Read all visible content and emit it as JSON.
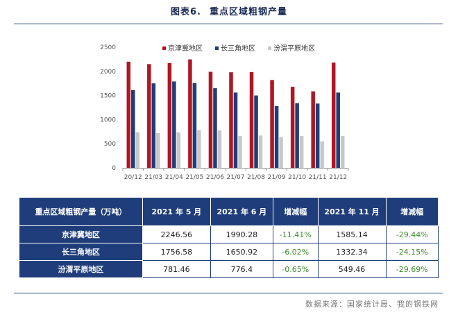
{
  "title": {
    "number": "图表6.",
    "text": "重点区域粗钢产量"
  },
  "colors": {
    "jjj": "#b01623",
    "csj": "#1f3d7a",
    "fw": "#c8c8c8",
    "negative": "#3f8a2f",
    "header": "#1f3d7a"
  },
  "chart_data": {
    "type": "bar",
    "categories": [
      "20/12",
      "21/03",
      "21/04",
      "21/05",
      "21/06",
      "21/07",
      "21/08",
      "21/09",
      "21/10",
      "21/11",
      "21/12"
    ],
    "series": [
      {
        "name": "京津冀地区",
        "color": "#b01623",
        "values": [
          2200,
          2150,
          2170,
          2246.56,
          1990.28,
          1980,
          1985,
          1820,
          1680,
          1585.14,
          2180
        ]
      },
      {
        "name": "长三角地区",
        "color": "#1f3d7a",
        "values": [
          1610,
          1750,
          1790,
          1756.58,
          1650.92,
          1560,
          1500,
          1280,
          1340,
          1332.34,
          1560
        ]
      },
      {
        "name": "汾渭平原地区",
        "color": "#c8c8c8",
        "values": [
          740,
          720,
          735,
          781.46,
          776.4,
          660,
          670,
          640,
          660,
          549.46,
          660
        ]
      }
    ],
    "ylim": [
      0,
      2500
    ],
    "yticks": [
      0,
      500,
      1000,
      1500,
      2000,
      2500
    ],
    "grid": false,
    "legend": "top"
  },
  "table": {
    "headers": [
      "重点区域粗钢产量（万吨）",
      "2021 年 5 月",
      "2021 年 6 月",
      "增减幅",
      "2021 年 11 月",
      "增减幅"
    ],
    "rows": [
      {
        "region": "京津冀地区",
        "may": "2246.56",
        "jun": "1990.28",
        "chg1": "-11.41%",
        "nov": "1585.14",
        "chg2": "-29.44%"
      },
      {
        "region": "长三角地区",
        "may": "1756.58",
        "jun": "1650.92",
        "chg1": "-6.02%",
        "nov": "1332.34",
        "chg2": "-24.15%"
      },
      {
        "region": "汾渭平原地区",
        "may": "781.46",
        "jun": "776.4",
        "chg1": "-0.65%",
        "nov": "549.46",
        "chg2": "-29.69%"
      }
    ]
  },
  "source": "数据来源：国家统计局、我的钢铁网"
}
